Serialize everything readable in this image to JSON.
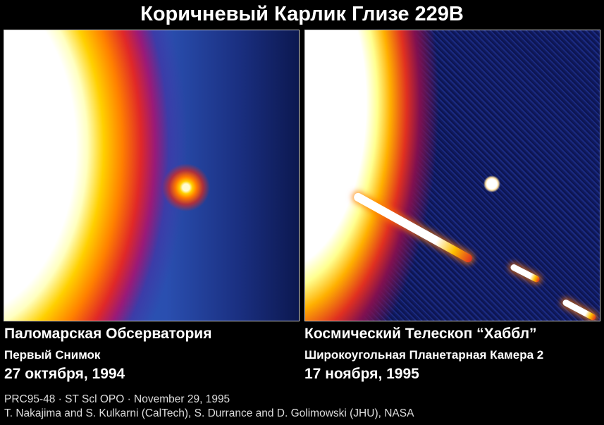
{
  "title": "Коричневый Карлик Глизе 229B",
  "panels": [
    {
      "line1": "Паломарская Обсерватория",
      "line2": "Первый Снимок",
      "date": "27 октября, 1994"
    },
    {
      "line1": "Космический Телескоп “Хаббл”",
      "line2": "Широкоугольная Планетарная Камера 2",
      "date": "17 ноября, 1995"
    }
  ],
  "credits": {
    "line1": "PRC95-48 · ST Scl OPO · November 29, 1995",
    "line2": "T. Nakajima and S. Kulkarni (CalTech), S. Durrance and D. Golimowski (JHU), NASA"
  }
}
